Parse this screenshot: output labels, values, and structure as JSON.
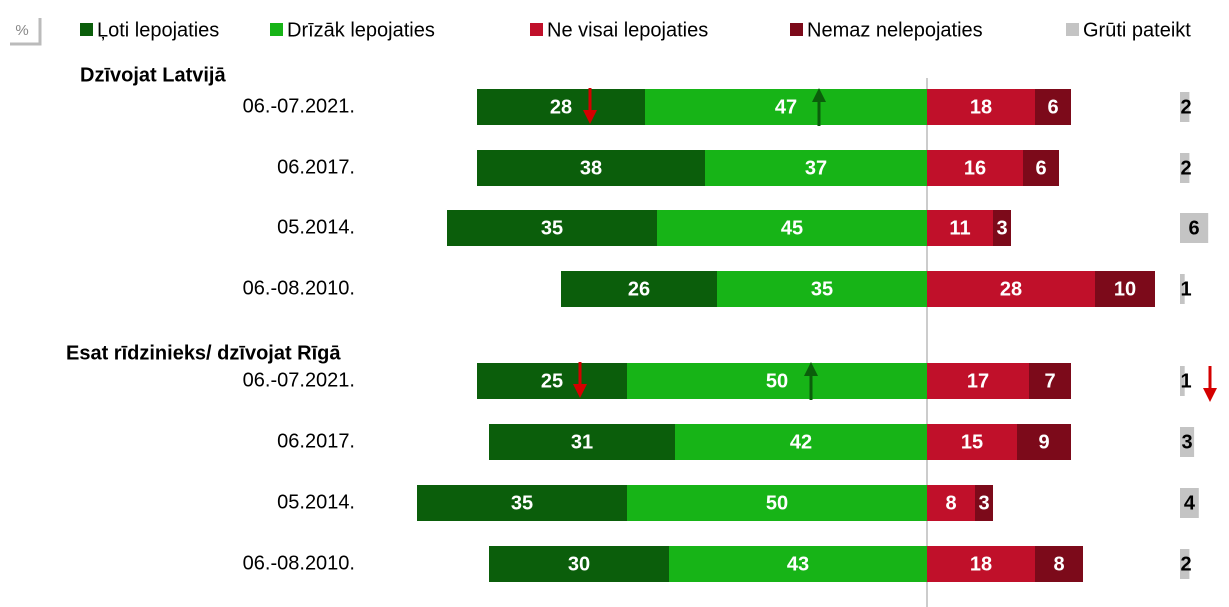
{
  "chart_data": {
    "type": "diverging-bar",
    "unit": "%",
    "series": [
      {
        "name": "Ļoti lepojaties",
        "color": "#0b5e0b",
        "side": "left"
      },
      {
        "name": "Drīzāk lepojaties",
        "color": "#17b417",
        "side": "left"
      },
      {
        "name": "Ne visai lepojaties",
        "color": "#c0102a",
        "side": "right"
      },
      {
        "name": "Nemaz nelepojaties",
        "color": "#7c0a1a",
        "side": "right"
      },
      {
        "name": "Grūti pateikt",
        "color": "#c4c4c4",
        "side": "aside"
      }
    ],
    "groups": [
      {
        "title": "Dzīvojat Latvijā",
        "categories": [
          "06.-07.2021.",
          "06.2017.",
          "05.2014.",
          "06.-08.2010."
        ],
        "values": [
          [
            28,
            47,
            18,
            6,
            2
          ],
          [
            38,
            37,
            16,
            6,
            2
          ],
          [
            35,
            45,
            11,
            3,
            6
          ],
          [
            26,
            35,
            28,
            10,
            1
          ]
        ]
      },
      {
        "title": "Esat rīdzinieks/ dzīvojat Rīgā",
        "categories": [
          "06.-07.2021.",
          "06.2017.",
          "05.2014.",
          "06.-08.2010."
        ],
        "values": [
          [
            25,
            50,
            17,
            7,
            1
          ],
          [
            31,
            42,
            15,
            9,
            3
          ],
          [
            35,
            50,
            8,
            3,
            4
          ],
          [
            30,
            43,
            18,
            8,
            2
          ]
        ]
      }
    ]
  }
}
